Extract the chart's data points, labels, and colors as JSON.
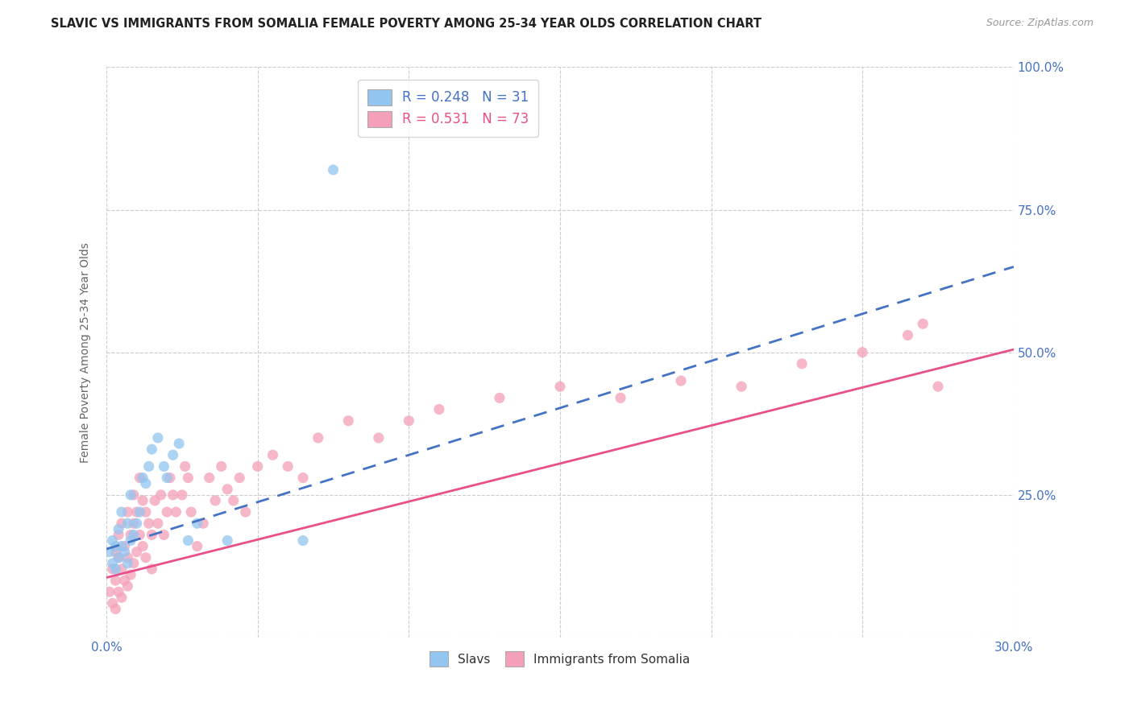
{
  "title": "SLAVIC VS IMMIGRANTS FROM SOMALIA FEMALE POVERTY AMONG 25-34 YEAR OLDS CORRELATION CHART",
  "source": "Source: ZipAtlas.com",
  "ylabel": "Female Poverty Among 25-34 Year Olds",
  "xlim": [
    0.0,
    0.3
  ],
  "ylim": [
    0.0,
    1.0
  ],
  "xticks": [
    0.0,
    0.05,
    0.1,
    0.15,
    0.2,
    0.25,
    0.3
  ],
  "yticks": [
    0.0,
    0.25,
    0.5,
    0.75,
    1.0
  ],
  "yticklabels": [
    "",
    "25.0%",
    "50.0%",
    "75.0%",
    "100.0%"
  ],
  "slavs_color": "#92c5f0",
  "somalia_color": "#f4a0b8",
  "slavs_line_color": "#4472c4",
  "somalia_line_color": "#e8508a",
  "R_slavs": 0.248,
  "N_slavs": 31,
  "R_somalia": 0.531,
  "N_somalia": 73,
  "legend_label_slavs": "Slavs",
  "legend_label_somalia": "Immigrants from Somalia",
  "background_color": "#ffffff",
  "grid_color": "#cccccc",
  "slavs_line_x0": 0.0,
  "slavs_line_y0": 0.155,
  "slavs_line_x1": 0.3,
  "slavs_line_y1": 0.65,
  "somalia_line_x0": 0.0,
  "somalia_line_y0": 0.105,
  "somalia_line_x1": 0.3,
  "somalia_line_y1": 0.505,
  "slavs_scatter_x": [
    0.001,
    0.002,
    0.002,
    0.003,
    0.003,
    0.004,
    0.004,
    0.005,
    0.005,
    0.006,
    0.007,
    0.007,
    0.008,
    0.008,
    0.009,
    0.01,
    0.011,
    0.012,
    0.013,
    0.014,
    0.015,
    0.017,
    0.019,
    0.02,
    0.022,
    0.024,
    0.027,
    0.03,
    0.04,
    0.065,
    0.075
  ],
  "slavs_scatter_y": [
    0.15,
    0.17,
    0.13,
    0.16,
    0.12,
    0.14,
    0.19,
    0.16,
    0.22,
    0.15,
    0.13,
    0.2,
    0.17,
    0.25,
    0.18,
    0.2,
    0.22,
    0.28,
    0.27,
    0.3,
    0.33,
    0.35,
    0.3,
    0.28,
    0.32,
    0.34,
    0.17,
    0.2,
    0.17,
    0.17,
    0.82
  ],
  "somalia_scatter_x": [
    0.001,
    0.002,
    0.002,
    0.003,
    0.003,
    0.003,
    0.004,
    0.004,
    0.004,
    0.005,
    0.005,
    0.005,
    0.006,
    0.006,
    0.007,
    0.007,
    0.007,
    0.008,
    0.008,
    0.009,
    0.009,
    0.009,
    0.01,
    0.01,
    0.011,
    0.011,
    0.012,
    0.012,
    0.013,
    0.013,
    0.014,
    0.015,
    0.015,
    0.016,
    0.017,
    0.018,
    0.019,
    0.02,
    0.021,
    0.022,
    0.023,
    0.025,
    0.026,
    0.027,
    0.028,
    0.03,
    0.032,
    0.034,
    0.036,
    0.038,
    0.04,
    0.042,
    0.044,
    0.046,
    0.05,
    0.055,
    0.06,
    0.065,
    0.07,
    0.08,
    0.09,
    0.1,
    0.11,
    0.13,
    0.15,
    0.17,
    0.19,
    0.21,
    0.23,
    0.25,
    0.265,
    0.27,
    0.275
  ],
  "somalia_scatter_y": [
    0.08,
    0.12,
    0.06,
    0.1,
    0.15,
    0.05,
    0.08,
    0.14,
    0.18,
    0.07,
    0.12,
    0.2,
    0.1,
    0.16,
    0.09,
    0.14,
    0.22,
    0.11,
    0.18,
    0.13,
    0.2,
    0.25,
    0.15,
    0.22,
    0.18,
    0.28,
    0.16,
    0.24,
    0.14,
    0.22,
    0.2,
    0.12,
    0.18,
    0.24,
    0.2,
    0.25,
    0.18,
    0.22,
    0.28,
    0.25,
    0.22,
    0.25,
    0.3,
    0.28,
    0.22,
    0.16,
    0.2,
    0.28,
    0.24,
    0.3,
    0.26,
    0.24,
    0.28,
    0.22,
    0.3,
    0.32,
    0.3,
    0.28,
    0.35,
    0.38,
    0.35,
    0.38,
    0.4,
    0.42,
    0.44,
    0.42,
    0.45,
    0.44,
    0.48,
    0.5,
    0.53,
    0.55,
    0.44
  ]
}
